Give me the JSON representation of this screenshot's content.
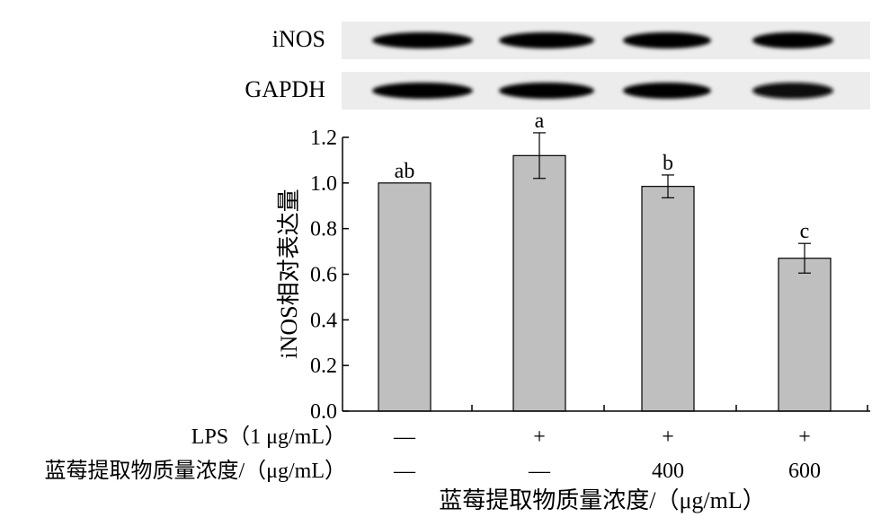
{
  "blots": [
    {
      "label": "iNOS",
      "band_intensity": [
        0.95,
        0.95,
        0.9,
        0.85
      ]
    },
    {
      "label": "GAPDH",
      "band_intensity": [
        0.95,
        0.95,
        0.9,
        0.8
      ]
    }
  ],
  "conditions": [
    {
      "label": "LPS（1 μg/mL）",
      "values": [
        "—",
        "+",
        "+",
        "+"
      ]
    },
    {
      "label": "蓝莓提取物质量浓度/（μg/mL）",
      "values": [
        "—",
        "—",
        "400",
        "600"
      ]
    }
  ],
  "chart_data": {
    "type": "bar",
    "title": "",
    "ylabel": "iNOS相对表达量",
    "xlabel": "蓝莓提取物质量浓度/（μg/mL）",
    "ylim": [
      0,
      1.2
    ],
    "yticks": [
      "0.0",
      "0.2",
      "0.4",
      "0.6",
      "0.8",
      "1.0",
      "1.2"
    ],
    "values": [
      1.0,
      1.12,
      0.985,
      0.67
    ],
    "errors": [
      0.0,
      0.1,
      0.05,
      0.065
    ],
    "significance": [
      "ab",
      "a",
      "b",
      "c"
    ],
    "bar_color": "#bfbfbf",
    "grid": false
  }
}
